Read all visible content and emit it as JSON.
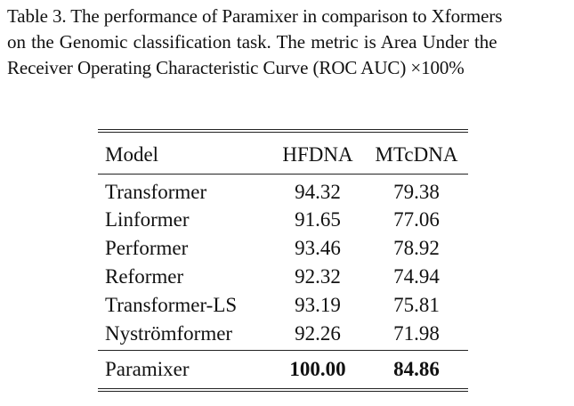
{
  "caption": {
    "line1": "Table 3. The performance of Paramixer in comparison to Xformers",
    "line2": "on the Genomic classification task. The metric is Area Under the",
    "line3": "Receiver Operating Characteristic Curve (ROC AUC) ×100%"
  },
  "table": {
    "headers": {
      "model": "Model",
      "col1": "HFDNA",
      "col2": "MTcDNA"
    },
    "rows": [
      {
        "model": "Transformer",
        "hfdna": "94.32",
        "mtcdna": "79.38"
      },
      {
        "model": "Linformer",
        "hfdna": "91.65",
        "mtcdna": "77.06"
      },
      {
        "model": "Performer",
        "hfdna": "93.46",
        "mtcdna": "78.92"
      },
      {
        "model": "Reformer",
        "hfdna": "92.32",
        "mtcdna": "74.94"
      },
      {
        "model": "Transformer-LS",
        "hfdna": "93.19",
        "mtcdna": "75.81"
      },
      {
        "model": "Nyströmformer",
        "hfdna": "92.26",
        "mtcdna": "71.98"
      }
    ],
    "ours": {
      "model": "Paramixer",
      "hfdna": "100.00",
      "mtcdna": "84.86"
    }
  }
}
